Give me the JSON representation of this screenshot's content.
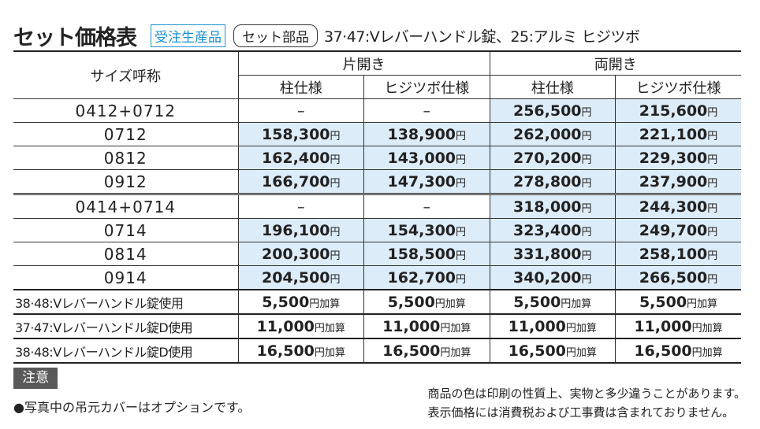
{
  "header": {
    "title": "セット価格表",
    "badges": [
      "受注生産品",
      "セット部品"
    ],
    "description": "37·47:Vレバーハンドル錠、25:アルミ ヒジツボ"
  },
  "table": {
    "size_header": "サイズ呼称",
    "groups": [
      "片開き",
      "両開き"
    ],
    "columns": [
      "柱仕様",
      "ヒジツボ仕様",
      "柱仕様",
      "ヒジツボ仕様"
    ],
    "rows": [
      {
        "label": "0412+0712",
        "cells": [
          {
            "amount": "–"
          },
          {
            "amount": "–"
          },
          {
            "amount": "256,500",
            "unit": "円"
          },
          {
            "amount": "215,600",
            "unit": "円"
          }
        ]
      },
      {
        "label": "0712",
        "cells": [
          {
            "amount": "158,300",
            "unit": "円"
          },
          {
            "amount": "138,900",
            "unit": "円"
          },
          {
            "amount": "262,000",
            "unit": "円"
          },
          {
            "amount": "221,100",
            "unit": "円"
          }
        ]
      },
      {
        "label": "0812",
        "cells": [
          {
            "amount": "162,400",
            "unit": "円"
          },
          {
            "amount": "143,000",
            "unit": "円"
          },
          {
            "amount": "270,200",
            "unit": "円"
          },
          {
            "amount": "229,300",
            "unit": "円"
          }
        ]
      },
      {
        "label": "0912",
        "cells": [
          {
            "amount": "166,700",
            "unit": "円"
          },
          {
            "amount": "147,300",
            "unit": "円"
          },
          {
            "amount": "278,800",
            "unit": "円"
          },
          {
            "amount": "237,900",
            "unit": "円"
          }
        ]
      },
      {
        "label": "0414+0714",
        "cells": [
          {
            "amount": "–"
          },
          {
            "amount": "–"
          },
          {
            "amount": "318,000",
            "unit": "円"
          },
          {
            "amount": "244,300",
            "unit": "円"
          }
        ]
      },
      {
        "label": "0714",
        "cells": [
          {
            "amount": "196,100",
            "unit": "円"
          },
          {
            "amount": "154,300",
            "unit": "円"
          },
          {
            "amount": "323,400",
            "unit": "円"
          },
          {
            "amount": "249,700",
            "unit": "円"
          }
        ]
      },
      {
        "label": "0814",
        "cells": [
          {
            "amount": "200,300",
            "unit": "円"
          },
          {
            "amount": "158,500",
            "unit": "円"
          },
          {
            "amount": "331,800",
            "unit": "円"
          },
          {
            "amount": "258,100",
            "unit": "円"
          }
        ]
      },
      {
        "label": "0914",
        "cells": [
          {
            "amount": "204,500",
            "unit": "円"
          },
          {
            "amount": "162,700",
            "unit": "円"
          },
          {
            "amount": "340,200",
            "unit": "円"
          },
          {
            "amount": "266,500",
            "unit": "円"
          }
        ]
      },
      {
        "label": "38·48:Vレバーハンドル錠使用",
        "cells": [
          {
            "amount": "5,500",
            "unit": "円加算"
          },
          {
            "amount": "5,500",
            "unit": "円加算"
          },
          {
            "amount": "5,500",
            "unit": "円加算"
          },
          {
            "amount": "5,500",
            "unit": "円加算"
          }
        ]
      },
      {
        "label": "37·47:Vレバーハンドル錠D使用",
        "cells": [
          {
            "amount": "11,000",
            "unit": "円加算"
          },
          {
            "amount": "11,000",
            "unit": "円加算"
          },
          {
            "amount": "11,000",
            "unit": "円加算"
          },
          {
            "amount": "11,000",
            "unit": "円加算"
          }
        ]
      },
      {
        "label": "38·48:Vレバーハンドル錠D使用",
        "cells": [
          {
            "amount": "16,500",
            "unit": "円加算"
          },
          {
            "amount": "16,500",
            "unit": "円加算"
          },
          {
            "amount": "16,500",
            "unit": "円加算"
          },
          {
            "amount": "16,500",
            "unit": "円加算"
          }
        ]
      }
    ]
  },
  "notes": {
    "label": "注意",
    "left": "●写真中の吊元カバーはオプションです。",
    "right": [
      "商品の色は印刷の性質上、実物と多少違うことがあります。",
      "表示価格には消費税および工事費は含まれておりません。"
    ]
  }
}
